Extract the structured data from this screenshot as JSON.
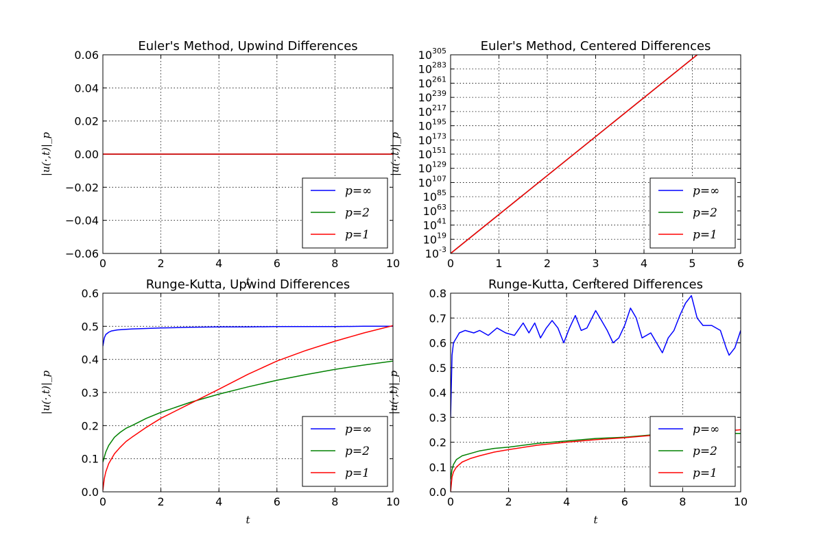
{
  "chart_data": [
    {
      "type": "line",
      "title": "Euler's Method, Upwind Differences",
      "xlabel": "t",
      "ylabel": "|u(·,t)|_p",
      "xlim": [
        0,
        10
      ],
      "ylim": [
        -0.06,
        0.06
      ],
      "yscale": "linear",
      "grid": true,
      "legend_position": "bottom-right",
      "x_ticks": [
        "0",
        "2",
        "4",
        "6",
        "8",
        "10"
      ],
      "y_ticks": [
        "−0.06",
        "−0.04",
        "−0.02",
        "0.00",
        "0.02",
        "0.04",
        "0.06"
      ],
      "series": [
        {
          "name": "p=∞",
          "color": "#0000ff",
          "x": [
            0,
            10
          ],
          "y": [
            0,
            0
          ]
        },
        {
          "name": "p=2",
          "color": "#008000",
          "x": [
            0,
            10
          ],
          "y": [
            0,
            0
          ]
        },
        {
          "name": "p=1",
          "color": "#ff0000",
          "x": [
            0,
            10
          ],
          "y": [
            0,
            0
          ]
        }
      ]
    },
    {
      "type": "line",
      "title": "Euler's Method, Centered Differences",
      "xlabel": "t",
      "ylabel": "|u(·,t)|_p",
      "xlim": [
        0,
        6
      ],
      "ylim": [
        "1e-3",
        "1e305"
      ],
      "yscale": "log",
      "grid": true,
      "legend_position": "bottom-right",
      "x_ticks": [
        "0",
        "1",
        "2",
        "3",
        "4",
        "5",
        "6"
      ],
      "y_ticks": [
        {
          "base": "10",
          "exp": "305"
        },
        {
          "base": "10",
          "exp": "283"
        },
        {
          "base": "10",
          "exp": "261"
        },
        {
          "base": "10",
          "exp": "239"
        },
        {
          "base": "10",
          "exp": "217"
        },
        {
          "base": "10",
          "exp": "195"
        },
        {
          "base": "10",
          "exp": "173"
        },
        {
          "base": "10",
          "exp": "151"
        },
        {
          "base": "10",
          "exp": "129"
        },
        {
          "base": "10",
          "exp": "107"
        },
        {
          "base": "10",
          "exp": "85"
        },
        {
          "base": "10",
          "exp": "63"
        },
        {
          "base": "10",
          "exp": "41"
        },
        {
          "base": "10",
          "exp": "19"
        },
        {
          "base": "10",
          "exp": "-3"
        }
      ],
      "series": [
        {
          "name": "p=∞",
          "color": "#0000ff",
          "x": [
            0,
            5.1
          ],
          "y": [
            "1e-3",
            "1e305"
          ]
        },
        {
          "name": "p=2",
          "color": "#008000",
          "x": [
            0,
            5.1
          ],
          "y": [
            "1e-3",
            "1e305"
          ]
        },
        {
          "name": "p=1",
          "color": "#ff0000",
          "x": [
            0,
            5.1
          ],
          "y": [
            "1e-3",
            "1e305"
          ]
        }
      ]
    },
    {
      "type": "line",
      "title": "Runge-Kutta, Upwind Differences",
      "xlabel": "t",
      "ylabel": "|u(·,t)|_p",
      "xlim": [
        0,
        10
      ],
      "ylim": [
        0,
        0.6
      ],
      "yscale": "linear",
      "grid": true,
      "legend_position": "bottom-right",
      "x_ticks": [
        "0",
        "2",
        "4",
        "6",
        "8",
        "10"
      ],
      "y_ticks": [
        "0.0",
        "0.1",
        "0.2",
        "0.3",
        "0.4",
        "0.5",
        "0.6"
      ],
      "series": [
        {
          "name": "p=∞",
          "color": "#0000ff",
          "x": [
            0,
            0.05,
            0.1,
            0.2,
            0.3,
            0.5,
            0.8,
            1,
            2,
            3,
            4,
            5,
            6,
            7,
            8,
            9,
            10
          ],
          "y": [
            0.44,
            0.465,
            0.475,
            0.482,
            0.486,
            0.489,
            0.491,
            0.492,
            0.495,
            0.497,
            0.498,
            0.498,
            0.499,
            0.499,
            0.499,
            0.5,
            0.5
          ]
        },
        {
          "name": "p=2",
          "color": "#008000",
          "x": [
            0,
            0.1,
            0.2,
            0.4,
            0.6,
            0.8,
            1,
            1.5,
            2,
            3,
            4,
            5,
            6,
            7,
            8,
            9,
            10
          ],
          "y": [
            0.09,
            0.12,
            0.14,
            0.165,
            0.18,
            0.192,
            0.2,
            0.222,
            0.24,
            0.27,
            0.295,
            0.317,
            0.337,
            0.354,
            0.37,
            0.383,
            0.395
          ]
        },
        {
          "name": "p=1",
          "color": "#ff0000",
          "x": [
            0,
            0.05,
            0.1,
            0.2,
            0.4,
            0.6,
            0.8,
            1,
            1.5,
            2,
            3,
            4,
            5,
            6,
            7,
            8,
            9,
            10
          ],
          "y": [
            0.005,
            0.04,
            0.06,
            0.085,
            0.115,
            0.135,
            0.152,
            0.165,
            0.195,
            0.222,
            0.266,
            0.31,
            0.355,
            0.395,
            0.427,
            0.455,
            0.48,
            0.502
          ]
        }
      ]
    },
    {
      "type": "line",
      "title": "Runge-Kutta, Centered Differences",
      "xlabel": "t",
      "ylabel": "|u(·,t)|_p",
      "xlim": [
        0,
        10
      ],
      "ylim": [
        0,
        0.8
      ],
      "yscale": "linear",
      "grid": true,
      "legend_position": "bottom-right",
      "x_ticks": [
        "0",
        "2",
        "4",
        "6",
        "8",
        "10"
      ],
      "y_ticks": [
        "0.0",
        "0.1",
        "0.2",
        "0.3",
        "0.4",
        "0.5",
        "0.6",
        "0.7",
        "0.8"
      ],
      "series": [
        {
          "name": "p=∞",
          "color": "#0000ff",
          "x": [
            0,
            0.05,
            0.1,
            0.2,
            0.3,
            0.5,
            0.8,
            1.0,
            1.3,
            1.6,
            1.9,
            2.2,
            2.5,
            2.7,
            2.9,
            3.1,
            3.3,
            3.5,
            3.7,
            3.9,
            4.1,
            4.3,
            4.5,
            4.7,
            5.0,
            5.2,
            5.4,
            5.6,
            5.8,
            6.0,
            6.2,
            6.4,
            6.6,
            6.9,
            7.1,
            7.3,
            7.5,
            7.7,
            7.9,
            8.1,
            8.3,
            8.5,
            8.7,
            9.0,
            9.3,
            9.5,
            9.6,
            9.8,
            10.0
          ],
          "y": [
            0.3,
            0.55,
            0.6,
            0.62,
            0.64,
            0.65,
            0.64,
            0.65,
            0.63,
            0.66,
            0.64,
            0.63,
            0.68,
            0.64,
            0.68,
            0.62,
            0.66,
            0.69,
            0.66,
            0.6,
            0.66,
            0.71,
            0.65,
            0.66,
            0.73,
            0.69,
            0.65,
            0.6,
            0.62,
            0.67,
            0.74,
            0.7,
            0.62,
            0.64,
            0.6,
            0.56,
            0.62,
            0.65,
            0.71,
            0.76,
            0.79,
            0.7,
            0.67,
            0.67,
            0.65,
            0.58,
            0.55,
            0.58,
            0.65
          ]
        },
        {
          "name": "p=2",
          "color": "#008000",
          "x": [
            0,
            0.05,
            0.1,
            0.2,
            0.4,
            0.7,
            1,
            1.5,
            2,
            3,
            4,
            5,
            6,
            7,
            8,
            9,
            10
          ],
          "y": [
            0.05,
            0.09,
            0.11,
            0.13,
            0.145,
            0.155,
            0.165,
            0.175,
            0.18,
            0.195,
            0.205,
            0.215,
            0.22,
            0.23,
            0.23,
            0.235,
            0.235
          ]
        },
        {
          "name": "p=1",
          "color": "#ff0000",
          "x": [
            0,
            0.05,
            0.1,
            0.2,
            0.4,
            0.7,
            1,
            1.5,
            2,
            3,
            4,
            5,
            6,
            7,
            8,
            9,
            10
          ],
          "y": [
            0.0,
            0.06,
            0.08,
            0.1,
            0.12,
            0.135,
            0.145,
            0.16,
            0.17,
            0.188,
            0.2,
            0.21,
            0.218,
            0.228,
            0.235,
            0.24,
            0.25
          ]
        }
      ]
    }
  ]
}
